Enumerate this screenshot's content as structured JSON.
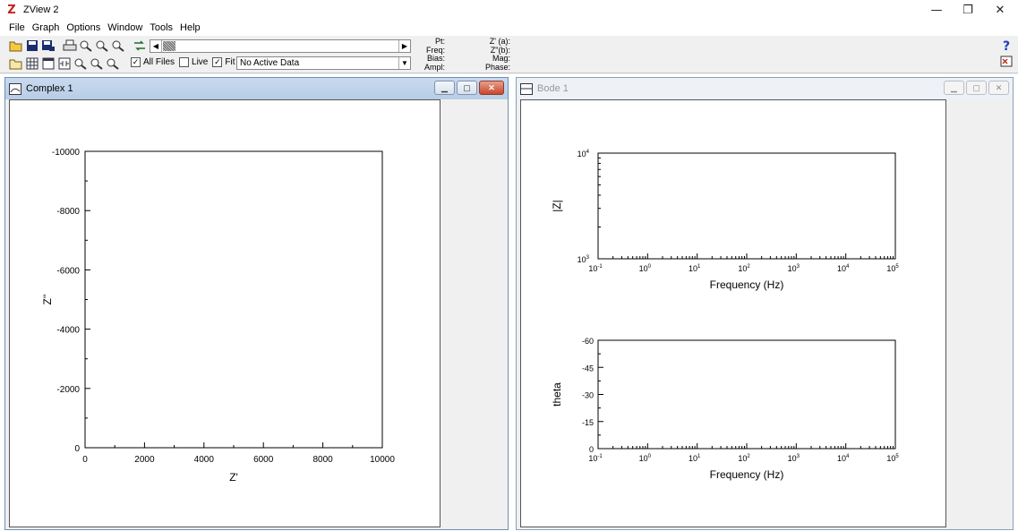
{
  "window": {
    "title": "ZView 2",
    "minimize": "—",
    "maximize": "❐",
    "close": "✕"
  },
  "menu": [
    "File",
    "Graph",
    "Options",
    "Window",
    "Tools",
    "Help"
  ],
  "toolbar": {
    "all_files_label": "All Files",
    "all_files_checked": true,
    "live_label": "Live",
    "live_checked": false,
    "fit_label": "Fit",
    "fit_checked": true,
    "active_data": "No Active Data",
    "readout_left": [
      "Pt:",
      "Freq:",
      "Bias:",
      "Ampl:"
    ],
    "readout_right": [
      "Z' (a):",
      "Z\"(b):",
      "Mag:",
      "Phase:"
    ]
  },
  "complex_window": {
    "title": "Complex 1",
    "chart_data": {
      "type": "scatter",
      "xlabel": "Z'",
      "ylabel": "Z''",
      "xlim": [
        0,
        10000
      ],
      "ylim": [
        0,
        -10000
      ],
      "x_ticks": [
        "0",
        "2000",
        "4000",
        "6000",
        "8000",
        "10000"
      ],
      "y_ticks": [
        "0",
        "-2000",
        "-4000",
        "-6000",
        "-8000",
        "-10000"
      ],
      "series": []
    }
  },
  "bode_window": {
    "title": "Bode 1",
    "chart_data": [
      {
        "type": "line",
        "ylabel": "|Z|",
        "xlabel": "Frequency (Hz)",
        "x_scale": "log",
        "y_scale": "log",
        "xlim": [
          0.1,
          100000
        ],
        "ylim": [
          1000,
          10000
        ],
        "x_ticks": [
          "-1",
          "0",
          "1",
          "2",
          "3",
          "4",
          "5"
        ],
        "y_ticks": [
          "3",
          "4"
        ],
        "series": []
      },
      {
        "type": "line",
        "ylabel": "theta",
        "xlabel": "Frequency (Hz)",
        "x_scale": "log",
        "xlim": [
          0.1,
          100000
        ],
        "ylim": [
          0,
          -60
        ],
        "x_ticks": [
          "-1",
          "0",
          "1",
          "2",
          "3",
          "4",
          "5"
        ],
        "y_ticks": [
          "0",
          "-15",
          "-30",
          "-45",
          "-60"
        ],
        "series": []
      }
    ]
  }
}
